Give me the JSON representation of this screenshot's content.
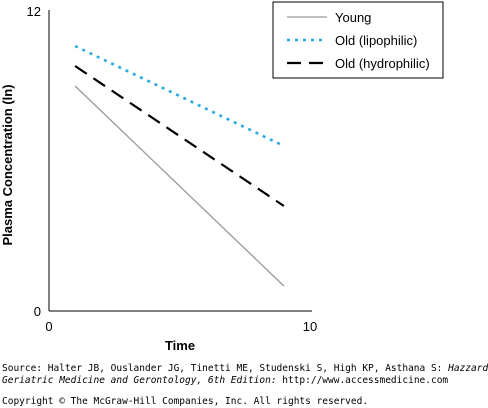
{
  "chart_data": {
    "type": "line",
    "xlabel": "Time",
    "ylabel": "Plasma Concentration (ln)",
    "xlim": [
      0,
      10
    ],
    "ylim": [
      0,
      12
    ],
    "x_ticks": [
      "0",
      "10"
    ],
    "y_ticks": [
      "0",
      "12"
    ],
    "grid": false,
    "legend_position": "top-right",
    "series": [
      {
        "name": "Young",
        "color": "#999999",
        "style": "solid",
        "x": [
          1,
          9
        ],
        "y": [
          9,
          1
        ]
      },
      {
        "name": "Old (lipophilic)",
        "color": "#29abe2",
        "style": "dotted",
        "x": [
          1,
          9
        ],
        "y": [
          10.6,
          6.6
        ]
      },
      {
        "name": "Old (hydrophilic)",
        "color": "#000000",
        "style": "dashed",
        "x": [
          1,
          9
        ],
        "y": [
          9.8,
          4.2
        ]
      }
    ]
  },
  "footer": {
    "source_prefix": "Source: Halter JB, Ouslander JG, Tinetti ME, Studenski S, High KP, Asthana S: ",
    "source_title_1": "Hazzard's",
    "source_title_2": "Geriatric Medicine and Gerontology, 6th Edition:",
    "source_url": " http://www.accessmedicine.com",
    "copyright": "Copyright © The McGraw-Hill Companies, Inc. All rights reserved."
  }
}
